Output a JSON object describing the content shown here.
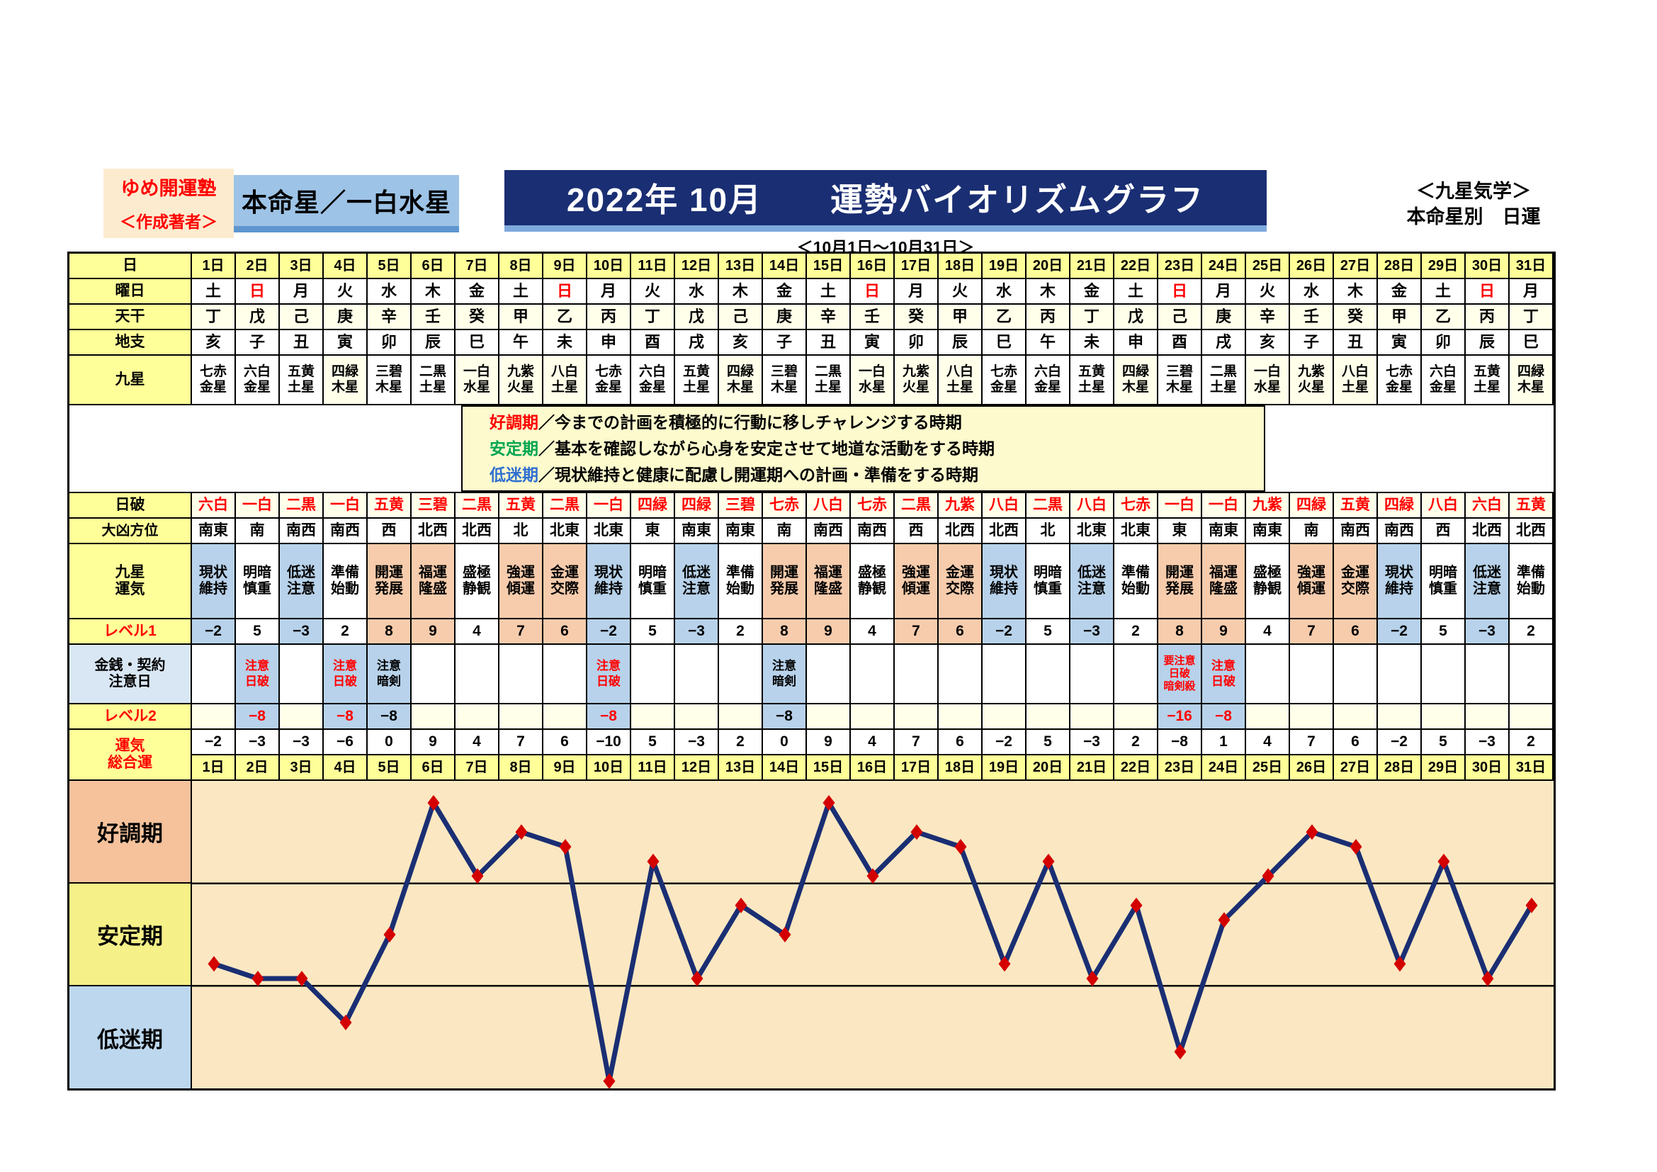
{
  "header": {
    "publisher": "ゆめ開運塾",
    "author_note": "＜作成著者＞",
    "honmei": "本命星／一白水星",
    "title": "2022年 10月　　運勢バイオリズムグラフ",
    "subtitle": "＜10月1日～10月31日＞",
    "school_note": "＜九星気学＞",
    "school_note2": "本命星別　日運"
  },
  "row_labels": {
    "date": "日",
    "yobi": "曜日",
    "tenkan": "天干",
    "chishi": "地支",
    "kyusei": "九星",
    "nichiha": "日破",
    "daikyo": "大凶方位",
    "unki": "九星\n運気",
    "level1": "レベル1",
    "kinsen": "金銭・契約\n注意日",
    "level2": "レベル2",
    "sogo": "運気\n総合運"
  },
  "legend": {
    "lines": [
      {
        "term": "好調期",
        "term_class": "t-red",
        "desc": "／今までの計画を積極的に行動に移しチャレンジする時期"
      },
      {
        "term": "安定期",
        "term_class": "t-green",
        "desc": "／基本を確認しながら心身を安定させて地道な活動をする時期"
      },
      {
        "term": "低迷期",
        "term_class": "t-blue",
        "desc": "／現状維持と健康に配慮し開運期への計画・準備をする時期"
      }
    ]
  },
  "bands": [
    {
      "label": "好調期",
      "cls": "b0"
    },
    {
      "label": "安定期",
      "cls": "b1"
    },
    {
      "label": "低迷期",
      "cls": "b2"
    }
  ],
  "colors": {
    "banner_navy": "#1A2E73",
    "honmei_blue": "#9DC3E6",
    "yellow": "#FFFF99",
    "ivory": "#FFFFEA",
    "cell_blue": "#B7D2EA",
    "cell_salmon": "#F6CCAC",
    "plot_cream": "#FBE8C2",
    "line_navy": "#1A2E73",
    "marker_red": "#D40000"
  },
  "days": [
    {
      "date": "1日",
      "yobi": "土",
      "yobi_class": "",
      "tenkan": "丁",
      "chishi": "亥",
      "kyusei": "七赤\n金星",
      "kyusei_class": "",
      "nichiha": "六白",
      "daikyo": "南東",
      "unki": "現状\n維持",
      "unki_class": "c-blue",
      "level1": "−2",
      "kinsen": "",
      "kinsen_class": "",
      "level2": "",
      "level2_class": "ivory",
      "sogo": "−2"
    },
    {
      "date": "2日",
      "yobi": "日",
      "yobi_class": "sun",
      "tenkan": "戊",
      "chishi": "子",
      "kyusei": "六白\n金星",
      "kyusei_class": "",
      "nichiha": "一白",
      "daikyo": "南",
      "unki": "明暗\n慎重",
      "unki_class": "",
      "level1": "5",
      "kinsen": "注意\n日破",
      "kinsen_class": "warn red",
      "level2": "−8",
      "level2_class": "fill red",
      "sogo": "−3"
    },
    {
      "date": "3日",
      "yobi": "月",
      "yobi_class": "",
      "tenkan": "己",
      "chishi": "丑",
      "kyusei": "五黄\n土星",
      "kyusei_class": "",
      "nichiha": "二黒",
      "daikyo": "南西",
      "unki": "低迷\n注意",
      "unki_class": "c-blue",
      "level1": "−3",
      "kinsen": "",
      "kinsen_class": "",
      "level2": "",
      "level2_class": "ivory",
      "sogo": "−3"
    },
    {
      "date": "4日",
      "yobi": "火",
      "yobi_class": "",
      "tenkan": "庚",
      "chishi": "寅",
      "kyusei": "四緑\n木星",
      "kyusei_class": "hl",
      "nichiha": "一白",
      "daikyo": "南西",
      "unki": "準備\n始動",
      "unki_class": "",
      "level1": "2",
      "kinsen": "注意\n日破",
      "kinsen_class": "warn red",
      "level2": "−8",
      "level2_class": "fill red",
      "sogo": "−6"
    },
    {
      "date": "5日",
      "yobi": "水",
      "yobi_class": "",
      "tenkan": "辛",
      "chishi": "卯",
      "kyusei": "三碧\n木星",
      "kyusei_class": "",
      "nichiha": "五黄",
      "daikyo": "西",
      "unki": "開運\n発展",
      "unki_class": "c-salmon",
      "level1": "8",
      "kinsen": "注意\n暗剣",
      "kinsen_class": "warn k",
      "level2": "−8",
      "level2_class": "fill k",
      "sogo": "0"
    },
    {
      "date": "6日",
      "yobi": "木",
      "yobi_class": "",
      "tenkan": "壬",
      "chishi": "辰",
      "kyusei": "二黒\n土星",
      "kyusei_class": "",
      "nichiha": "三碧",
      "daikyo": "北西",
      "unki": "福運\n隆盛",
      "unki_class": "c-salmon",
      "level1": "9",
      "kinsen": "",
      "kinsen_class": "",
      "level2": "",
      "level2_class": "ivory",
      "sogo": "9"
    },
    {
      "date": "7日",
      "yobi": "金",
      "yobi_class": "",
      "tenkan": "癸",
      "chishi": "巳",
      "kyusei": "一白\n水星",
      "kyusei_class": "hl",
      "nichiha": "二黒",
      "daikyo": "北西",
      "unki": "盛極\n静観",
      "unki_class": "",
      "level1": "4",
      "kinsen": "",
      "kinsen_class": "",
      "level2": "",
      "level2_class": "ivory",
      "sogo": "4"
    },
    {
      "date": "8日",
      "yobi": "土",
      "yobi_class": "",
      "tenkan": "甲",
      "chishi": "午",
      "kyusei": "九紫\n火星",
      "kyusei_class": "hl",
      "nichiha": "五黄",
      "daikyo": "北",
      "unki": "強運\n傾運",
      "unki_class": "c-salmon",
      "level1": "7",
      "kinsen": "",
      "kinsen_class": "",
      "level2": "",
      "level2_class": "ivory",
      "sogo": "7"
    },
    {
      "date": "9日",
      "yobi": "日",
      "yobi_class": "sun",
      "tenkan": "乙",
      "chishi": "未",
      "kyusei": "八白\n土星",
      "kyusei_class": "hl",
      "nichiha": "二黒",
      "daikyo": "北東",
      "unki": "金運\n交際",
      "unki_class": "c-salmon",
      "level1": "6",
      "kinsen": "",
      "kinsen_class": "",
      "level2": "",
      "level2_class": "ivory",
      "sogo": "6"
    },
    {
      "date": "10日",
      "yobi": "月",
      "yobi_class": "",
      "tenkan": "丙",
      "chishi": "申",
      "kyusei": "七赤\n金星",
      "kyusei_class": "",
      "nichiha": "一白",
      "daikyo": "北東",
      "unki": "現状\n維持",
      "unki_class": "c-blue",
      "level1": "−2",
      "kinsen": "注意\n日破",
      "kinsen_class": "warn red",
      "level2": "−8",
      "level2_class": "fill red",
      "sogo": "−10"
    },
    {
      "date": "11日",
      "yobi": "火",
      "yobi_class": "",
      "tenkan": "丁",
      "chishi": "酉",
      "kyusei": "六白\n金星",
      "kyusei_class": "",
      "nichiha": "四緑",
      "daikyo": "東",
      "unki": "明暗\n慎重",
      "unki_class": "",
      "level1": "5",
      "kinsen": "",
      "kinsen_class": "",
      "level2": "",
      "level2_class": "ivory",
      "sogo": "5"
    },
    {
      "date": "12日",
      "yobi": "水",
      "yobi_class": "",
      "tenkan": "戊",
      "chishi": "戌",
      "kyusei": "五黄\n土星",
      "kyusei_class": "",
      "nichiha": "四緑",
      "daikyo": "南東",
      "unki": "低迷\n注意",
      "unki_class": "c-blue",
      "level1": "−3",
      "kinsen": "",
      "kinsen_class": "",
      "level2": "",
      "level2_class": "ivory",
      "sogo": "−3"
    },
    {
      "date": "13日",
      "yobi": "木",
      "yobi_class": "",
      "tenkan": "己",
      "chishi": "亥",
      "kyusei": "四緑\n木星",
      "kyusei_class": "hl",
      "nichiha": "三碧",
      "daikyo": "南東",
      "unki": "準備\n始動",
      "unki_class": "",
      "level1": "2",
      "kinsen": "",
      "kinsen_class": "",
      "level2": "",
      "level2_class": "ivory",
      "sogo": "2"
    },
    {
      "date": "14日",
      "yobi": "金",
      "yobi_class": "",
      "tenkan": "庚",
      "chishi": "子",
      "kyusei": "三碧\n木星",
      "kyusei_class": "",
      "nichiha": "七赤",
      "daikyo": "南",
      "unki": "開運\n発展",
      "unki_class": "c-salmon",
      "level1": "8",
      "kinsen": "注意\n暗剣",
      "kinsen_class": "warn k",
      "level2": "−8",
      "level2_class": "fill k",
      "sogo": "0"
    },
    {
      "date": "15日",
      "yobi": "土",
      "yobi_class": "",
      "tenkan": "辛",
      "chishi": "丑",
      "kyusei": "二黒\n土星",
      "kyusei_class": "",
      "nichiha": "八白",
      "daikyo": "南西",
      "unki": "福運\n隆盛",
      "unki_class": "c-salmon",
      "level1": "9",
      "kinsen": "",
      "kinsen_class": "",
      "level2": "",
      "level2_class": "ivory",
      "sogo": "9"
    },
    {
      "date": "16日",
      "yobi": "日",
      "yobi_class": "sun",
      "tenkan": "壬",
      "chishi": "寅",
      "kyusei": "一白\n水星",
      "kyusei_class": "hl",
      "nichiha": "七赤",
      "daikyo": "南西",
      "unki": "盛極\n静観",
      "unki_class": "",
      "level1": "4",
      "kinsen": "",
      "kinsen_class": "",
      "level2": "",
      "level2_class": "ivory",
      "sogo": "4"
    },
    {
      "date": "17日",
      "yobi": "月",
      "yobi_class": "",
      "tenkan": "癸",
      "chishi": "卯",
      "kyusei": "九紫\n火星",
      "kyusei_class": "hl",
      "nichiha": "二黒",
      "daikyo": "西",
      "unki": "強運\n傾運",
      "unki_class": "c-salmon",
      "level1": "7",
      "kinsen": "",
      "kinsen_class": "",
      "level2": "",
      "level2_class": "ivory",
      "sogo": "7"
    },
    {
      "date": "18日",
      "yobi": "火",
      "yobi_class": "",
      "tenkan": "甲",
      "chishi": "辰",
      "kyusei": "八白\n土星",
      "kyusei_class": "hl",
      "nichiha": "九紫",
      "daikyo": "北西",
      "unki": "金運\n交際",
      "unki_class": "c-salmon",
      "level1": "6",
      "kinsen": "",
      "kinsen_class": "",
      "level2": "",
      "level2_class": "ivory",
      "sogo": "6"
    },
    {
      "date": "19日",
      "yobi": "水",
      "yobi_class": "",
      "tenkan": "乙",
      "chishi": "巳",
      "kyusei": "七赤\n金星",
      "kyusei_class": "",
      "nichiha": "八白",
      "daikyo": "北西",
      "unki": "現状\n維持",
      "unki_class": "c-blue",
      "level1": "−2",
      "kinsen": "",
      "kinsen_class": "",
      "level2": "",
      "level2_class": "ivory",
      "sogo": "−2"
    },
    {
      "date": "20日",
      "yobi": "木",
      "yobi_class": "",
      "tenkan": "丙",
      "chishi": "午",
      "kyusei": "六白\n金星",
      "kyusei_class": "",
      "nichiha": "二黒",
      "daikyo": "北",
      "unki": "明暗\n慎重",
      "unki_class": "",
      "level1": "5",
      "kinsen": "",
      "kinsen_class": "",
      "level2": "",
      "level2_class": "ivory",
      "sogo": "5"
    },
    {
      "date": "21日",
      "yobi": "金",
      "yobi_class": "",
      "tenkan": "丁",
      "chishi": "未",
      "kyusei": "五黄\n土星",
      "kyusei_class": "",
      "nichiha": "八白",
      "daikyo": "北東",
      "unki": "低迷\n注意",
      "unki_class": "c-blue",
      "level1": "−3",
      "kinsen": "",
      "kinsen_class": "",
      "level2": "",
      "level2_class": "ivory",
      "sogo": "−3"
    },
    {
      "date": "22日",
      "yobi": "土",
      "yobi_class": "",
      "tenkan": "戊",
      "chishi": "申",
      "kyusei": "四緑\n木星",
      "kyusei_class": "hl",
      "nichiha": "七赤",
      "daikyo": "北東",
      "unki": "準備\n始動",
      "unki_class": "",
      "level1": "2",
      "kinsen": "",
      "kinsen_class": "",
      "level2": "",
      "level2_class": "ivory",
      "sogo": "2"
    },
    {
      "date": "23日",
      "yobi": "日",
      "yobi_class": "sun",
      "tenkan": "己",
      "chishi": "酉",
      "kyusei": "三碧\n木星",
      "kyusei_class": "",
      "nichiha": "一白",
      "daikyo": "東",
      "unki": "開運\n発展",
      "unki_class": "c-salmon",
      "level1": "8",
      "kinsen": "要注意\n日破\n暗剣殺",
      "kinsen_class": "warn red small",
      "level2": "−16",
      "level2_class": "fill red",
      "sogo": "−8"
    },
    {
      "date": "24日",
      "yobi": "月",
      "yobi_class": "",
      "tenkan": "庚",
      "chishi": "戌",
      "kyusei": "二黒\n土星",
      "kyusei_class": "",
      "nichiha": "一白",
      "daikyo": "南東",
      "unki": "福運\n隆盛",
      "unki_class": "c-salmon",
      "level1": "9",
      "kinsen": "注意\n日破",
      "kinsen_class": "warn red",
      "level2": "−8",
      "level2_class": "fill red",
      "sogo": "1"
    },
    {
      "date": "25日",
      "yobi": "火",
      "yobi_class": "",
      "tenkan": "辛",
      "chishi": "亥",
      "kyusei": "一白\n水星",
      "kyusei_class": "hl",
      "nichiha": "九紫",
      "daikyo": "南東",
      "unki": "盛極\n静観",
      "unki_class": "",
      "level1": "4",
      "kinsen": "",
      "kinsen_class": "",
      "level2": "",
      "level2_class": "ivory",
      "sogo": "4"
    },
    {
      "date": "26日",
      "yobi": "水",
      "yobi_class": "",
      "tenkan": "壬",
      "chishi": "子",
      "kyusei": "九紫\n火星",
      "kyusei_class": "hl",
      "nichiha": "四緑",
      "daikyo": "南",
      "unki": "強運\n傾運",
      "unki_class": "c-salmon",
      "level1": "7",
      "kinsen": "",
      "kinsen_class": "",
      "level2": "",
      "level2_class": "ivory",
      "sogo": "7"
    },
    {
      "date": "27日",
      "yobi": "木",
      "yobi_class": "",
      "tenkan": "癸",
      "chishi": "丑",
      "kyusei": "八白\n土星",
      "kyusei_class": "hl",
      "nichiha": "五黄",
      "daikyo": "南西",
      "unki": "金運\n交際",
      "unki_class": "c-salmon",
      "level1": "6",
      "kinsen": "",
      "kinsen_class": "",
      "level2": "",
      "level2_class": "ivory",
      "sogo": "6"
    },
    {
      "date": "28日",
      "yobi": "金",
      "yobi_class": "",
      "tenkan": "甲",
      "chishi": "寅",
      "kyusei": "七赤\n金星",
      "kyusei_class": "",
      "nichiha": "四緑",
      "daikyo": "南西",
      "unki": "現状\n維持",
      "unki_class": "c-blue",
      "level1": "−2",
      "kinsen": "",
      "kinsen_class": "",
      "level2": "",
      "level2_class": "ivory",
      "sogo": "−2"
    },
    {
      "date": "29日",
      "yobi": "土",
      "yobi_class": "",
      "tenkan": "乙",
      "chishi": "卯",
      "kyusei": "六白\n金星",
      "kyusei_class": "",
      "nichiha": "八白",
      "daikyo": "西",
      "unki": "明暗\n慎重",
      "unki_class": "",
      "level1": "5",
      "kinsen": "",
      "kinsen_class": "",
      "level2": "",
      "level2_class": "ivory",
      "sogo": "5"
    },
    {
      "date": "30日",
      "yobi": "日",
      "yobi_class": "sun",
      "tenkan": "丙",
      "chishi": "辰",
      "kyusei": "五黄\n土星",
      "kyusei_class": "",
      "nichiha": "六白",
      "daikyo": "北西",
      "unki": "低迷\n注意",
      "unki_class": "c-blue",
      "level1": "−3",
      "kinsen": "",
      "kinsen_class": "",
      "level2": "",
      "level2_class": "ivory",
      "sogo": "−3"
    },
    {
      "date": "31日",
      "yobi": "月",
      "yobi_class": "",
      "tenkan": "丁",
      "chishi": "巳",
      "kyusei": "四緑\n木星",
      "kyusei_class": "hl",
      "nichiha": "五黄",
      "daikyo": "北西",
      "unki": "準備\n始動",
      "unki_class": "",
      "level1": "2",
      "kinsen": "",
      "kinsen_class": "",
      "level2": "",
      "level2_class": "ivory",
      "sogo": "2"
    }
  ],
  "chart_data": {
    "type": "line",
    "title": "2022年10月 運勢バイオリズムグラフ（一白水星）",
    "xlabel": "日",
    "ylabel": "運気総合運",
    "x": [
      1,
      2,
      3,
      4,
      5,
      6,
      7,
      8,
      9,
      10,
      11,
      12,
      13,
      14,
      15,
      16,
      17,
      18,
      19,
      20,
      21,
      22,
      23,
      24,
      25,
      26,
      27,
      28,
      29,
      30,
      31
    ],
    "values": [
      -2,
      -3,
      -3,
      -6,
      0,
      9,
      4,
      7,
      6,
      -10,
      5,
      -3,
      2,
      0,
      9,
      4,
      7,
      6,
      -2,
      5,
      -3,
      2,
      -8,
      1,
      4,
      7,
      6,
      -2,
      5,
      -3,
      2
    ],
    "ylim": [
      -10.5,
      10.5
    ],
    "bands": [
      "好調期",
      "安定期",
      "低迷期"
    ],
    "grid": false,
    "legend_position": "none",
    "line_color": "#1A2E73",
    "marker": "diamond",
    "marker_color": "#D40000",
    "plot_bg": "#FBE8C2"
  }
}
